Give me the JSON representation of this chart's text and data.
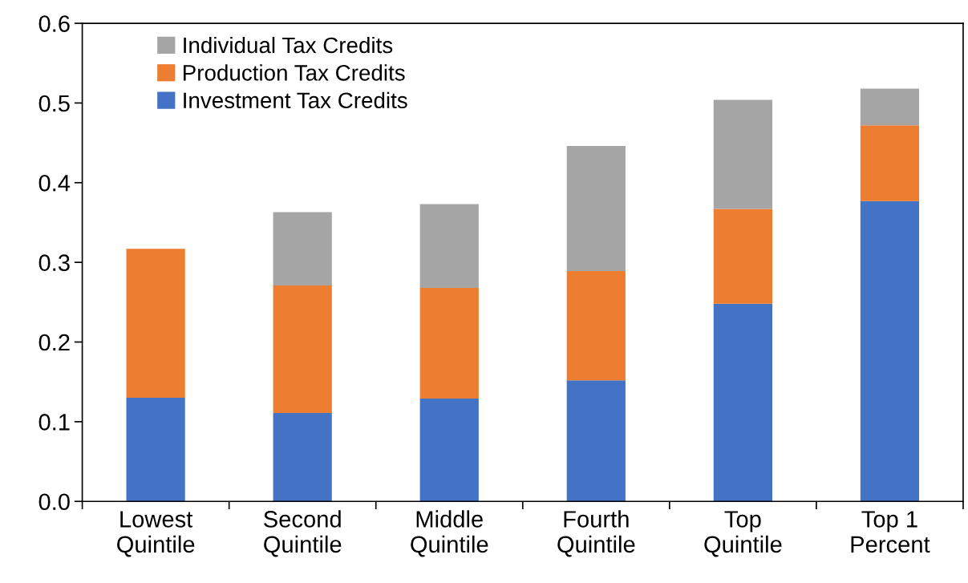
{
  "chart_data": {
    "type": "bar",
    "stacked": true,
    "categories": [
      "Lowest\nQuintile",
      "Second\nQuintile",
      "Middle\nQuintile",
      "Fourth\nQuintile",
      "Top\nQuintile",
      "Top 1\nPercent"
    ],
    "series": [
      {
        "name": "Investment Tax Credits",
        "color": "#4472c4",
        "values": [
          0.13,
          0.111,
          0.129,
          0.152,
          0.248,
          0.377
        ]
      },
      {
        "name": "Production Tax Credits",
        "color": "#ed7d31",
        "values": [
          0.187,
          0.16,
          0.139,
          0.137,
          0.119,
          0.095
        ]
      },
      {
        "name": "Individual Tax Credits",
        "color": "#a5a5a5",
        "values": [
          0.0,
          0.092,
          0.105,
          0.157,
          0.137,
          0.046
        ]
      }
    ],
    "ylim": [
      0,
      0.6
    ],
    "yticks": [
      {
        "value": 0,
        "label": "0.0"
      },
      {
        "value": 0.1,
        "label": "0.1"
      },
      {
        "value": 0.2,
        "label": "0.2"
      },
      {
        "value": 0.3,
        "label": "0.3"
      },
      {
        "value": 0.4,
        "label": "0.4"
      },
      {
        "value": 0.5,
        "label": "0.5"
      },
      {
        "value": 0.6,
        "label": "0.6"
      }
    ],
    "grid": false,
    "legend": "top left"
  }
}
